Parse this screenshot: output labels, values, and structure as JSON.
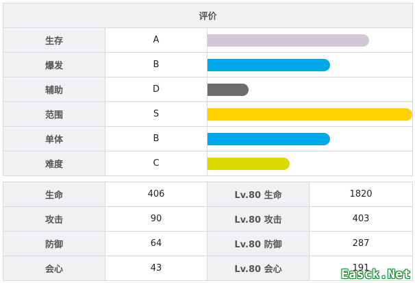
{
  "rating": {
    "title": "评价",
    "rows": [
      {
        "label": "生存",
        "grade": "A",
        "level": 0.79,
        "color": "#d4c7d8"
      },
      {
        "label": "爆发",
        "grade": "B",
        "level": 0.6,
        "color": "#00a8ea"
      },
      {
        "label": "辅助",
        "grade": "D",
        "level": 0.2,
        "color": "#6d6d6d"
      },
      {
        "label": "范围",
        "grade": "S",
        "level": 1.0,
        "color": "#fdd000"
      },
      {
        "label": "单体",
        "grade": "B",
        "level": 0.6,
        "color": "#00a8ea"
      },
      {
        "label": "难度",
        "grade": "C",
        "level": 0.4,
        "color": "#dcd800"
      }
    ]
  },
  "stats": {
    "rows": [
      {
        "label": "生命",
        "value": "406",
        "lv_label": "Lv.80 生命",
        "lv_value": "1820"
      },
      {
        "label": "攻击",
        "value": "90",
        "lv_label": "Lv.80 攻击",
        "lv_value": "403"
      },
      {
        "label": "防御",
        "value": "64",
        "lv_label": "Lv.80 防御",
        "lv_value": "287"
      },
      {
        "label": "会心",
        "value": "43",
        "lv_label": "Lv.80 会心",
        "lv_value": "191"
      }
    ]
  },
  "watermark": "Easck.Net"
}
